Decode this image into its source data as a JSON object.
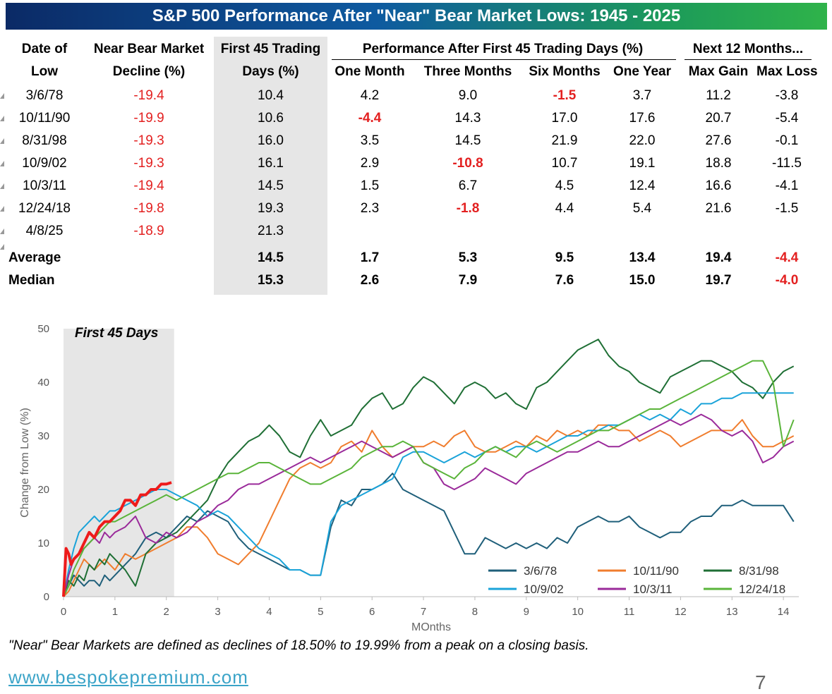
{
  "title": "S&P 500 Performance After \"Near\" Bear Market Lows: 1945 - 2025",
  "table": {
    "headers": {
      "date_line1": "Date of",
      "date_line2": "Low",
      "decline_line1": "Near Bear Market",
      "decline_line2": "Decline (%)",
      "first45_line1": "First 45 Trading",
      "first45_line2": "Days (%)",
      "perf_group": "Performance After First 45 Trading Days (%)",
      "next12_group": "Next 12 Months...",
      "one_month": "One Month",
      "three_months": "Three Months",
      "six_months": "Six Months",
      "one_year": "One Year",
      "max_gain": "Max Gain",
      "max_loss": "Max Loss"
    },
    "rows": [
      {
        "date": "3/6/78",
        "decline": "-19.4",
        "first45": "10.4",
        "m1": "4.2",
        "m3": "9.0",
        "m6": "-1.5",
        "y1": "3.7",
        "max_gain": "11.2",
        "max_loss": "-3.8"
      },
      {
        "date": "10/11/90",
        "decline": "-19.9",
        "first45": "10.6",
        "m1": "-4.4",
        "m3": "14.3",
        "m6": "17.0",
        "y1": "17.6",
        "max_gain": "20.7",
        "max_loss": "-5.4"
      },
      {
        "date": "8/31/98",
        "decline": "-19.3",
        "first45": "16.0",
        "m1": "3.5",
        "m3": "14.5",
        "m6": "21.9",
        "y1": "22.0",
        "max_gain": "27.6",
        "max_loss": "-0.1"
      },
      {
        "date": "10/9/02",
        "decline": "-19.3",
        "first45": "16.1",
        "m1": "2.9",
        "m3": "-10.8",
        "m6": "10.7",
        "y1": "19.1",
        "max_gain": "18.8",
        "max_loss": "-11.5"
      },
      {
        "date": "10/3/11",
        "decline": "-19.4",
        "first45": "14.5",
        "m1": "1.5",
        "m3": "6.7",
        "m6": "4.5",
        "y1": "12.4",
        "max_gain": "16.6",
        "max_loss": "-4.1"
      },
      {
        "date": "12/24/18",
        "decline": "-19.8",
        "first45": "19.3",
        "m1": "2.3",
        "m3": "-1.8",
        "m6": "4.4",
        "y1": "5.4",
        "max_gain": "21.6",
        "max_loss": "-1.5"
      },
      {
        "date": "4/8/25",
        "decline": "-18.9",
        "first45": "21.3",
        "m1": "",
        "m3": "",
        "m6": "",
        "y1": "",
        "max_gain": "",
        "max_loss": ""
      }
    ],
    "average": {
      "label": "Average",
      "first45": "14.5",
      "m1": "1.7",
      "m3": "5.3",
      "m6": "9.5",
      "y1": "13.4",
      "max_gain": "19.4",
      "max_loss": "-4.4"
    },
    "median": {
      "label": "Median",
      "first45": "15.3",
      "m1": "2.6",
      "m3": "7.9",
      "m6": "7.6",
      "y1": "15.0",
      "max_gain": "19.7",
      "max_loss": "-4.0"
    },
    "colors": {
      "negative": "#e32020",
      "shade": "#e6e6e6"
    }
  },
  "chart_data": {
    "type": "line",
    "shaded_label": "First 45 Days",
    "shaded_range": [
      0,
      2.15
    ],
    "ylabel": "Change from Low (%)",
    "xlabel": "MOnths",
    "xlim": [
      0,
      14.3
    ],
    "ylim": [
      0,
      50
    ],
    "xticks": [
      0,
      1,
      2,
      3,
      4,
      5,
      6,
      7,
      8,
      9,
      10,
      11,
      12,
      13,
      14
    ],
    "yticks": [
      0,
      10,
      20,
      30,
      40,
      50
    ],
    "series": [
      {
        "name": "3/6/78",
        "color": "#1f5f7a",
        "width": 2,
        "x": [
          0,
          0.1,
          0.2,
          0.3,
          0.4,
          0.5,
          0.6,
          0.7,
          0.8,
          0.9,
          1,
          1.2,
          1.4,
          1.6,
          1.8,
          2,
          2.2,
          2.4,
          2.6,
          2.8,
          3,
          3.2,
          3.4,
          3.6,
          3.8,
          4,
          4.2,
          4.4,
          4.6,
          4.8,
          5,
          5.2,
          5.4,
          5.6,
          5.8,
          6,
          6.2,
          6.4,
          6.6,
          6.8,
          7,
          7.2,
          7.4,
          7.6,
          7.8,
          8,
          8.2,
          8.4,
          8.6,
          8.8,
          9,
          9.2,
          9.4,
          9.6,
          9.8,
          10,
          10.2,
          10.4,
          10.6,
          10.8,
          11,
          11.2,
          11.4,
          11.6,
          11.8,
          12,
          12.2,
          12.4,
          12.6,
          12.8,
          13,
          13.2,
          13.4,
          13.6,
          13.8,
          14,
          14.2
        ],
        "y": [
          0,
          2,
          4,
          3,
          2,
          3,
          3,
          2,
          4,
          3,
          4,
          6,
          8,
          11,
          12,
          11,
          13,
          15,
          14,
          16,
          15,
          14,
          11,
          9,
          8,
          7,
          6,
          5,
          5,
          4,
          4,
          13,
          18,
          17,
          20,
          20,
          21,
          23,
          20,
          19,
          18,
          17,
          16,
          12,
          8,
          8,
          11,
          10,
          9,
          10,
          9,
          10,
          9,
          11,
          10,
          13,
          14,
          15,
          14,
          14,
          15,
          13,
          12,
          11,
          12,
          12,
          14,
          15,
          15,
          17,
          17,
          18,
          17,
          17,
          17,
          17,
          14
        ]
      },
      {
        "name": "10/11/90",
        "color": "#f07d2e",
        "width": 2,
        "x": [
          0,
          0.1,
          0.2,
          0.3,
          0.4,
          0.5,
          0.6,
          0.7,
          0.8,
          0.9,
          1,
          1.2,
          1.4,
          1.6,
          1.8,
          2,
          2.2,
          2.4,
          2.6,
          2.8,
          3,
          3.2,
          3.4,
          3.6,
          3.8,
          4,
          4.2,
          4.4,
          4.6,
          4.8,
          5,
          5.2,
          5.4,
          5.6,
          5.8,
          6,
          6.2,
          6.4,
          6.6,
          6.8,
          7,
          7.2,
          7.4,
          7.6,
          7.8,
          8,
          8.2,
          8.4,
          8.6,
          8.8,
          9,
          9.2,
          9.4,
          9.6,
          9.8,
          10,
          10.2,
          10.4,
          10.6,
          10.8,
          11,
          11.2,
          11.4,
          11.6,
          11.8,
          12,
          12.2,
          12.4,
          12.6,
          12.8,
          13,
          13.2,
          13.4,
          13.6,
          13.8,
          14,
          14.2
        ],
        "y": [
          0,
          1,
          3,
          5,
          7,
          6,
          5,
          6,
          7,
          6,
          5,
          8,
          7,
          8,
          9,
          10,
          11,
          13,
          13,
          11,
          8,
          7,
          6,
          8,
          10,
          14,
          18,
          22,
          24,
          25,
          24,
          25,
          28,
          29,
          27,
          31,
          28,
          26,
          27,
          28,
          28,
          29,
          28,
          30,
          31,
          28,
          27,
          27,
          28,
          29,
          28,
          30,
          29,
          31,
          30,
          31,
          30,
          32,
          32,
          31,
          31,
          29,
          30,
          31,
          30,
          28,
          29,
          30,
          31,
          31,
          31,
          33,
          30,
          28,
          28,
          29,
          30
        ]
      },
      {
        "name": "8/31/98",
        "color": "#1f6f35",
        "width": 2,
        "x": [
          0,
          0.1,
          0.2,
          0.3,
          0.4,
          0.5,
          0.6,
          0.7,
          0.8,
          0.9,
          1,
          1.2,
          1.4,
          1.6,
          1.8,
          2,
          2.2,
          2.4,
          2.6,
          2.8,
          3,
          3.2,
          3.4,
          3.6,
          3.8,
          4,
          4.2,
          4.4,
          4.6,
          4.8,
          5,
          5.2,
          5.4,
          5.6,
          5.8,
          6,
          6.2,
          6.4,
          6.6,
          6.8,
          7,
          7.2,
          7.4,
          7.6,
          7.8,
          8,
          8.2,
          8.4,
          8.6,
          8.8,
          9,
          9.2,
          9.4,
          9.6,
          9.8,
          10,
          10.2,
          10.4,
          10.6,
          10.8,
          11,
          11.2,
          11.4,
          11.6,
          11.8,
          12,
          12.2,
          12.4,
          12.6,
          12.8,
          13,
          13.2,
          13.4,
          13.6,
          13.8,
          14,
          14.2
        ],
        "y": [
          0,
          3,
          2,
          4,
          3,
          6,
          5,
          7,
          6,
          8,
          7,
          5,
          2,
          8,
          10,
          11,
          12,
          14,
          16,
          18,
          22,
          25,
          27,
          29,
          30,
          32,
          30,
          27,
          26,
          30,
          33,
          30,
          31,
          32,
          35,
          37,
          38,
          35,
          36,
          39,
          41,
          40,
          38,
          36,
          39,
          40,
          39,
          37,
          38,
          36,
          35,
          39,
          40,
          42,
          44,
          46,
          47,
          48,
          45,
          43,
          42,
          40,
          39,
          38,
          41,
          42,
          43,
          44,
          44,
          43,
          42,
          40,
          39,
          37,
          40,
          42,
          43
        ]
      },
      {
        "name": "10/9/02",
        "color": "#1aa3d9",
        "width": 2,
        "x": [
          0,
          0.1,
          0.2,
          0.3,
          0.4,
          0.5,
          0.6,
          0.7,
          0.8,
          0.9,
          1,
          1.2,
          1.4,
          1.6,
          1.8,
          2,
          2.2,
          2.4,
          2.6,
          2.8,
          3,
          3.2,
          3.4,
          3.6,
          3.8,
          4,
          4.2,
          4.4,
          4.6,
          4.8,
          5,
          5.2,
          5.4,
          5.6,
          5.8,
          6,
          6.2,
          6.4,
          6.6,
          6.8,
          7,
          7.2,
          7.4,
          7.6,
          7.8,
          8,
          8.2,
          8.4,
          8.6,
          8.8,
          9,
          9.2,
          9.4,
          9.6,
          9.8,
          10,
          10.2,
          10.4,
          10.6,
          10.8,
          11,
          11.2,
          11.4,
          11.6,
          11.8,
          12,
          12.2,
          12.4,
          12.6,
          12.8,
          13,
          13.2,
          13.4,
          13.6,
          13.8,
          14,
          14.2
        ],
        "y": [
          0,
          5,
          9,
          12,
          13,
          14,
          15,
          14,
          15,
          16,
          16,
          17,
          18,
          19,
          20,
          20,
          19,
          18,
          17,
          15,
          16,
          15,
          13,
          11,
          9,
          8,
          7,
          5,
          5,
          4,
          4,
          14,
          17,
          18,
          19,
          20,
          21,
          22,
          26,
          27,
          27,
          26,
          25,
          26,
          27,
          26,
          27,
          28,
          27,
          28,
          28,
          27,
          28,
          29,
          30,
          30,
          31,
          31,
          32,
          32,
          33,
          34,
          33,
          34,
          33,
          35,
          34,
          36,
          36,
          37,
          37,
          38,
          38,
          38,
          38,
          38,
          38
        ]
      },
      {
        "name": "10/3/11",
        "color": "#9a2a9a",
        "width": 2,
        "x": [
          0,
          0.1,
          0.2,
          0.3,
          0.4,
          0.5,
          0.6,
          0.7,
          0.8,
          0.9,
          1,
          1.2,
          1.4,
          1.6,
          1.8,
          2,
          2.2,
          2.4,
          2.6,
          2.8,
          3,
          3.2,
          3.4,
          3.6,
          3.8,
          4,
          4.2,
          4.4,
          4.6,
          4.8,
          5,
          5.2,
          5.4,
          5.6,
          5.8,
          6,
          6.2,
          6.4,
          6.6,
          6.8,
          7,
          7.2,
          7.4,
          7.6,
          7.8,
          8,
          8.2,
          8.4,
          8.6,
          8.8,
          9,
          9.2,
          9.4,
          9.6,
          9.8,
          10,
          10.2,
          10.4,
          10.6,
          10.8,
          11,
          11.2,
          11.4,
          11.6,
          11.8,
          12,
          12.2,
          12.4,
          12.6,
          12.8,
          13,
          13.2,
          13.4,
          13.6,
          13.8,
          14,
          14.2
        ],
        "y": [
          0,
          4,
          7,
          8,
          9,
          10,
          11,
          10,
          12,
          11,
          12,
          13,
          15,
          11,
          10,
          12,
          11,
          12,
          14,
          15,
          17,
          18,
          20,
          21,
          21,
          22,
          23,
          24,
          25,
          26,
          25,
          26,
          27,
          28,
          29,
          28,
          27,
          26,
          27,
          28,
          25,
          24,
          21,
          20,
          21,
          22,
          24,
          23,
          22,
          21,
          23,
          24,
          25,
          26,
          27,
          27,
          28,
          29,
          28,
          28,
          29,
          30,
          31,
          32,
          33,
          32,
          33,
          34,
          33,
          31,
          30,
          31,
          29,
          25,
          26,
          28,
          29
        ]
      },
      {
        "name": "12/24/18",
        "color": "#5ab43a",
        "width": 2,
        "x": [
          0,
          0.1,
          0.2,
          0.3,
          0.4,
          0.5,
          0.6,
          0.7,
          0.8,
          0.9,
          1,
          1.2,
          1.4,
          1.6,
          1.8,
          2,
          2.2,
          2.4,
          2.6,
          2.8,
          3,
          3.2,
          3.4,
          3.6,
          3.8,
          4,
          4.2,
          4.4,
          4.6,
          4.8,
          5,
          5.2,
          5.4,
          5.6,
          5.8,
          6,
          6.2,
          6.4,
          6.6,
          6.8,
          7,
          7.2,
          7.4,
          7.6,
          7.8,
          8,
          8.2,
          8.4,
          8.6,
          8.8,
          9,
          9.2,
          9.4,
          9.6,
          9.8,
          10,
          10.2,
          10.4,
          10.6,
          10.8,
          11,
          11.2,
          11.4,
          11.6,
          11.8,
          12,
          12.2,
          12.4,
          12.6,
          12.8,
          13,
          13.2,
          13.4,
          13.6,
          13.8,
          14,
          14.2
        ],
        "y": [
          0,
          2,
          5,
          7,
          9,
          10,
          11,
          12,
          13,
          14,
          14,
          15,
          16,
          17,
          18,
          19,
          18,
          19,
          20,
          21,
          22,
          23,
          23,
          24,
          25,
          25,
          24,
          23,
          22,
          21,
          21,
          22,
          23,
          24,
          26,
          27,
          28,
          28,
          29,
          28,
          25,
          24,
          23,
          22,
          24,
          25,
          27,
          28,
          27,
          26,
          28,
          29,
          28,
          27,
          28,
          29,
          30,
          31,
          31,
          32,
          33,
          34,
          35,
          35,
          36,
          37,
          38,
          39,
          40,
          41,
          42,
          43,
          44,
          44,
          40,
          28,
          33
        ]
      },
      {
        "name": "4/8/25",
        "color": "#ee1b1b",
        "width": 4,
        "x": [
          0,
          0.05,
          0.1,
          0.15,
          0.2,
          0.3,
          0.4,
          0.5,
          0.6,
          0.7,
          0.8,
          0.9,
          1,
          1.1,
          1.2,
          1.3,
          1.4,
          1.5,
          1.6,
          1.7,
          1.8,
          1.9,
          2,
          2.1
        ],
        "y": [
          0,
          9,
          8,
          6,
          7,
          8,
          10,
          12,
          11,
          13,
          14,
          14,
          15,
          16,
          18,
          18,
          17,
          19,
          19,
          20,
          20,
          21,
          21,
          21.3
        ]
      }
    ]
  },
  "footnote": "\"Near\" Bear Markets are defined as declines of 18.50% to 19.99% from a peak on a closing basis.",
  "website": "www.bespokepremium.com",
  "page_number": "7"
}
